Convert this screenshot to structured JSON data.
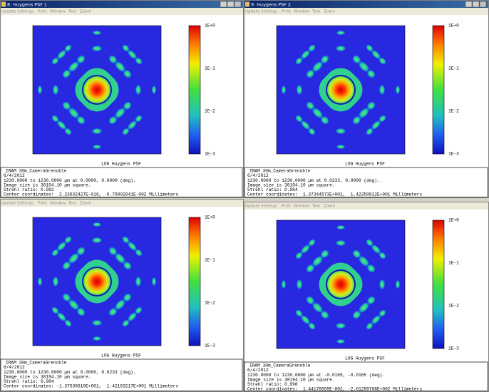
{
  "menu": [
    "Update",
    "Settings",
    "Print",
    "Window",
    "Text",
    "Zoom"
  ],
  "colorbar_labels": [
    "1E+0",
    "1E-1",
    "1E-2",
    "1E-3"
  ],
  "caption": "LOG Huygens PSF",
  "windows": [
    {
      "title": "8: Huygens PSF 1",
      "info": [
        "IRAM 30m_CameraGrenoble",
        "6/4/2012",
        "1230.0000 to 1230.0000 µm at 0.0000, 0.0000 (deg).",
        "Image size is 30194.10 µm square.",
        "Strehl ratio: 0.992",
        "Center coordinates:  2.23632427E-016, -9.79002041E-002 Millimeters"
      ]
    },
    {
      "title": "9: Huygens PSF 2",
      "info": [
        "IRAM 30m_CameraGrenoble",
        "6/4/2012",
        "1230.0000 to 1230.0000 µm at 0.0233, 0.0000 (deg).",
        "Image size is 30194.10 µm square.",
        "Strehl ratio: 0.984",
        "Center coordinates:  1.37344573E+001,  1.42350812E+001 Millimeters"
      ]
    },
    {
      "info": [
        "IRAM 30m_CameraGrenoble",
        "6/4/2012",
        "1230.0000 to 1230.0000 µm at 0.0000, 0.0233 (deg).",
        "Image size is 30194.10 µm square.",
        "Strehl ratio: 0.984",
        "Center coordinates: -1.37538610E+001,  1.42163217E+001 Millimeters"
      ]
    },
    {
      "info": [
        "IRAM 30m_CameraGrenoble",
        "6/4/2012",
        "1230.0000 to 1230.0000 µm at -0.0165, -0.0165 (deg).",
        "Image size is 30194.10 µm square.",
        "Strehl ratio: 0.990",
        "Center coordinates:  1.44178559E-002, -2.01289706E+002 Millimeters"
      ]
    }
  ]
}
